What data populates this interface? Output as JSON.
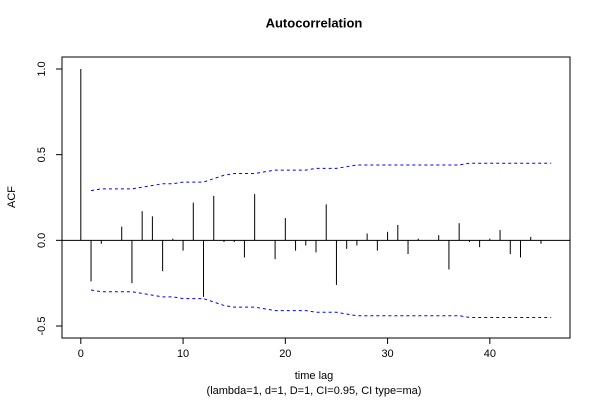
{
  "chart_data": {
    "type": "acf",
    "title": "Autocorrelation",
    "xlabel": "time lag",
    "subtitle": "(lambda=1, d=1, D=1, CI=0.95, CI type=ma)",
    "ylabel": "ACF",
    "x": [
      0,
      1,
      2,
      3,
      4,
      5,
      6,
      7,
      8,
      9,
      10,
      11,
      12,
      13,
      14,
      15,
      16,
      17,
      18,
      19,
      20,
      21,
      22,
      23,
      24,
      25,
      26,
      27,
      28,
      29,
      30,
      31,
      32,
      33,
      34,
      35,
      36,
      37,
      38,
      39,
      40,
      41,
      42,
      43,
      44,
      45,
      46
    ],
    "values": [
      1.0,
      -0.24,
      -0.02,
      0.0,
      0.08,
      -0.25,
      0.17,
      0.14,
      -0.18,
      0.01,
      -0.06,
      0.22,
      -0.33,
      0.26,
      -0.01,
      -0.01,
      -0.1,
      0.27,
      0.0,
      -0.11,
      0.13,
      -0.06,
      -0.03,
      -0.07,
      0.21,
      -0.26,
      -0.05,
      -0.03,
      0.04,
      -0.06,
      0.05,
      0.09,
      -0.08,
      0.01,
      0.0,
      0.03,
      -0.17,
      0.1,
      -0.01,
      -0.04,
      0.01,
      0.06,
      -0.08,
      -0.1,
      0.02,
      -0.02,
      0.0
    ],
    "ci_upper": [
      null,
      0.29,
      0.3,
      0.3,
      0.3,
      0.3,
      0.31,
      0.32,
      0.33,
      0.33,
      0.34,
      0.34,
      0.34,
      0.36,
      0.38,
      0.39,
      0.39,
      0.39,
      0.4,
      0.41,
      0.41,
      0.41,
      0.41,
      0.42,
      0.42,
      0.42,
      0.43,
      0.44,
      0.44,
      0.44,
      0.44,
      0.44,
      0.44,
      0.44,
      0.44,
      0.44,
      0.44,
      0.44,
      0.45,
      0.45,
      0.45,
      0.45,
      0.45,
      0.45,
      0.45,
      0.45,
      0.45
    ],
    "ci_lower": [
      null,
      -0.29,
      -0.3,
      -0.3,
      -0.3,
      -0.3,
      -0.31,
      -0.32,
      -0.33,
      -0.33,
      -0.34,
      -0.34,
      -0.34,
      -0.36,
      -0.38,
      -0.39,
      -0.39,
      -0.39,
      -0.4,
      -0.41,
      -0.41,
      -0.41,
      -0.41,
      -0.42,
      -0.42,
      -0.42,
      -0.43,
      -0.44,
      -0.44,
      -0.44,
      -0.44,
      -0.44,
      -0.44,
      -0.44,
      -0.44,
      -0.44,
      -0.44,
      -0.44,
      -0.45,
      -0.45,
      -0.45,
      -0.45,
      -0.45,
      -0.45,
      -0.45,
      -0.45,
      -0.45
    ],
    "color": "#000000",
    "ci_color": "#0000ff",
    "xlim": [
      -1.84,
      47.84
    ],
    "ylim": [
      -0.57,
      1.07
    ],
    "xticks": [
      0,
      10,
      20,
      30,
      40
    ],
    "yticks": [
      -0.5,
      {
        "value": 0,
        "label": "0.0"
      },
      0.5,
      {
        "value": 1,
        "label": "1.0"
      }
    ]
  }
}
